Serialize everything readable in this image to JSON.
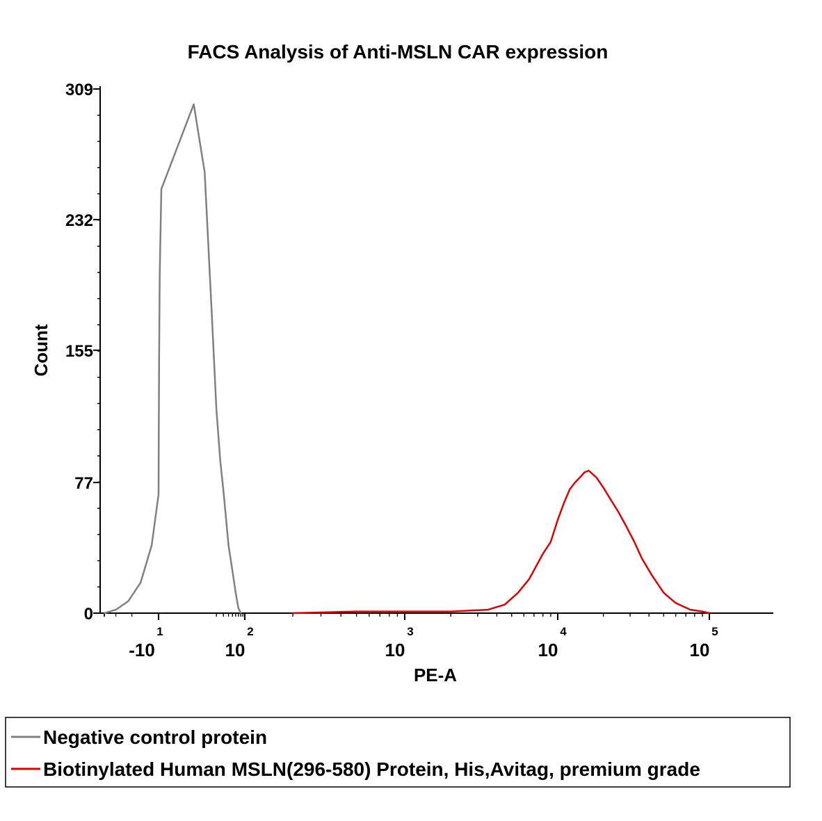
{
  "chart_data": {
    "type": "line",
    "title": "FACS Analysis of Anti-MSLN CAR expression",
    "xlabel": "PE-A",
    "ylabel": "Count",
    "x_scale": "biexponential",
    "ylim": [
      0,
      309
    ],
    "y_ticks": [
      "0",
      "77",
      "155",
      "232",
      "309"
    ],
    "x_ticks": [
      {
        "value": -10,
        "base": "-10",
        "exp": "1"
      },
      {
        "value": 100,
        "base": "10",
        "exp": "2"
      },
      {
        "value": 1000,
        "base": "10",
        "exp": "3"
      },
      {
        "value": 10000,
        "base": "10",
        "exp": "4"
      },
      {
        "value": 100000,
        "base": "10",
        "exp": "5"
      }
    ],
    "grid": false,
    "legend_position": "bottom",
    "series": [
      {
        "name": "Negative control protein",
        "color": "#808080",
        "x": [
          -40,
          -30,
          -22,
          -16,
          -12,
          -10,
          -8,
          -6,
          -3,
          0,
          5,
          10,
          15,
          20,
          25,
          30,
          35,
          40,
          50,
          60,
          70,
          80
        ],
        "y": [
          0,
          2,
          7,
          18,
          40,
          70,
          105,
          150,
          200,
          250,
          300,
          260,
          180,
          120,
          90,
          72,
          55,
          40,
          25,
          12,
          3,
          0
        ]
      },
      {
        "name": "Biotinylated Human MSLN(296-580) Protein, His,Avitag, premium grade",
        "color": "#e00000",
        "x": [
          200,
          500,
          1000,
          2000,
          3500,
          4500,
          5500,
          6500,
          8000,
          9000,
          10000,
          11000,
          12000,
          13000,
          14000,
          15000,
          16000,
          18000,
          20000,
          22000,
          25000,
          28000,
          32000,
          36000,
          42000,
          50000,
          60000,
          75000,
          90000,
          100000
        ],
        "y": [
          0,
          1,
          1,
          1,
          2,
          5,
          12,
          20,
          35,
          42,
          55,
          65,
          73,
          77,
          80,
          83,
          84,
          80,
          74,
          68,
          60,
          52,
          42,
          32,
          22,
          12,
          6,
          2,
          1,
          0
        ]
      }
    ]
  }
}
